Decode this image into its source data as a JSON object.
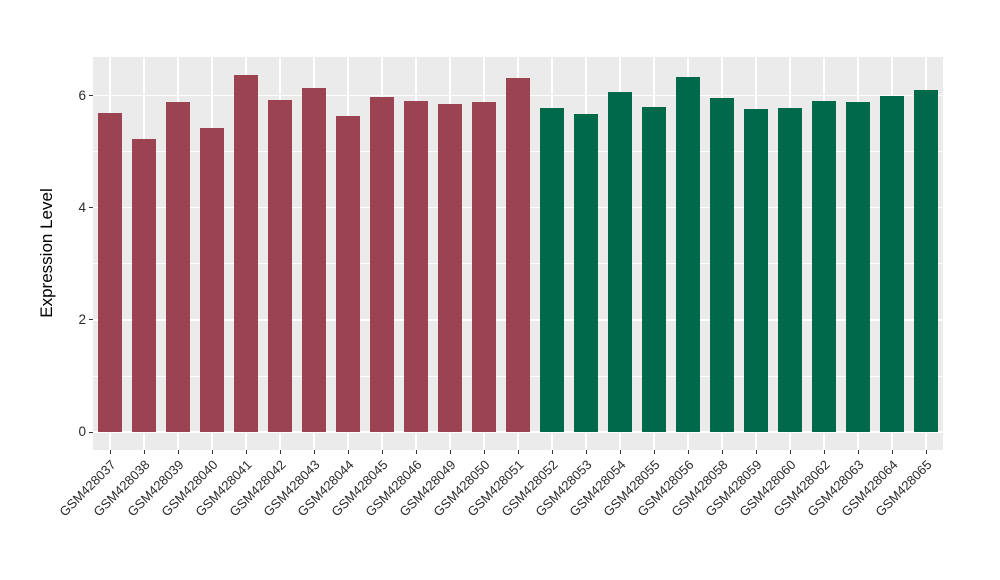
{
  "chart_data": {
    "type": "bar",
    "title": "",
    "xlabel": "",
    "ylabel": "Expression Level",
    "ylim": [
      -0.32,
      6.69
    ],
    "yticks": [
      0,
      2,
      4,
      6
    ],
    "yticks_minor": [
      1,
      3,
      5
    ],
    "grid": true,
    "legend": "none",
    "panel_background": "#EBEBEB",
    "grid_color": "#FFFFFF",
    "categories": [
      "GSM428037",
      "GSM428038",
      "GSM428039",
      "GSM428040",
      "GSM428041",
      "GSM428042",
      "GSM428043",
      "GSM428044",
      "GSM428045",
      "GSM428046",
      "GSM428049",
      "GSM428050",
      "GSM428051",
      "GSM428052",
      "GSM428053",
      "GSM428054",
      "GSM428055",
      "GSM428056",
      "GSM428058",
      "GSM428059",
      "GSM428060",
      "GSM428062",
      "GSM428063",
      "GSM428064",
      "GSM428065"
    ],
    "values": [
      5.69,
      5.22,
      5.89,
      5.43,
      6.37,
      5.92,
      6.13,
      5.64,
      5.98,
      5.91,
      5.85,
      5.89,
      6.31,
      5.78,
      5.67,
      6.06,
      5.8,
      6.33,
      5.95,
      5.76,
      5.78,
      5.9,
      5.89,
      5.99,
      6.1
    ],
    "bar_group_index": [
      0,
      0,
      0,
      0,
      0,
      0,
      0,
      0,
      0,
      0,
      0,
      0,
      0,
      1,
      1,
      1,
      1,
      1,
      1,
      1,
      1,
      1,
      1,
      1,
      1
    ],
    "group_colors": [
      "#9B4350",
      "#00694A"
    ]
  }
}
